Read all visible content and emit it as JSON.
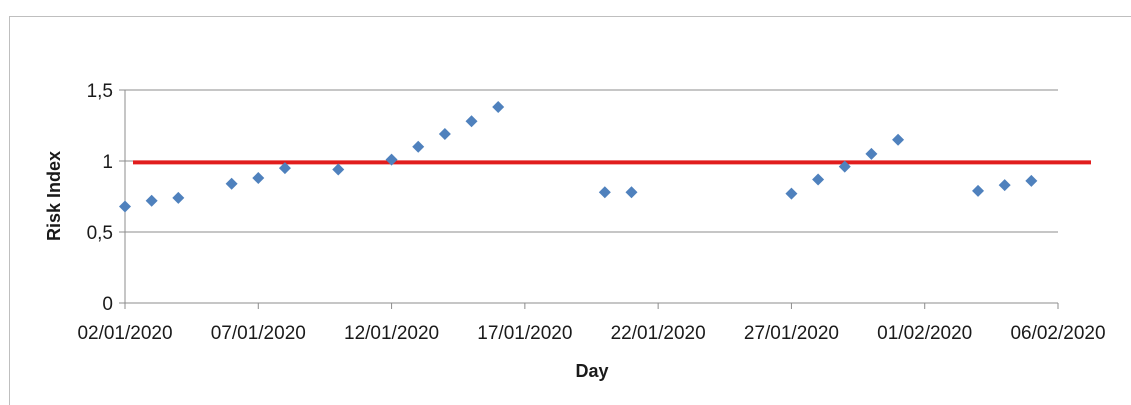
{
  "chart_data": {
    "type": "scatter",
    "xlabel": "Day",
    "ylabel": "Risk Index",
    "x_ticks": [
      "02/01/2020",
      "07/01/2020",
      "12/01/2020",
      "17/01/2020",
      "22/01/2020",
      "27/01/2020",
      "01/02/2020",
      "06/02/2020"
    ],
    "y_ticks": [
      "0",
      "0,5",
      "1",
      "1,5"
    ],
    "xlim": [
      "2020-01-02",
      "2020-02-06"
    ],
    "ylim": [
      0,
      1.5
    ],
    "grid": "horizontal",
    "legend": "none",
    "series": [
      {
        "color": "#4f81bd",
        "marker": "diamond",
        "points": [
          {
            "x": "2020-01-02",
            "y": 0.68
          },
          {
            "x": "2020-01-03",
            "y": 0.72
          },
          {
            "x": "2020-01-04",
            "y": 0.74
          },
          {
            "x": "2020-01-06",
            "y": 0.84
          },
          {
            "x": "2020-01-07",
            "y": 0.88
          },
          {
            "x": "2020-01-08",
            "y": 0.95
          },
          {
            "x": "2020-01-10",
            "y": 0.94
          },
          {
            "x": "2020-01-12",
            "y": 1.01
          },
          {
            "x": "2020-01-13",
            "y": 1.1
          },
          {
            "x": "2020-01-14",
            "y": 1.19
          },
          {
            "x": "2020-01-15",
            "y": 1.28
          },
          {
            "x": "2020-01-16",
            "y": 1.38
          },
          {
            "x": "2020-01-20",
            "y": 0.78
          },
          {
            "x": "2020-01-21",
            "y": 0.78
          },
          {
            "x": "2020-01-27",
            "y": 0.77
          },
          {
            "x": "2020-01-28",
            "y": 0.87
          },
          {
            "x": "2020-01-29",
            "y": 0.96
          },
          {
            "x": "2020-01-30",
            "y": 1.05
          },
          {
            "x": "2020-01-31",
            "y": 1.15
          },
          {
            "x": "2020-02-03",
            "y": 0.79
          },
          {
            "x": "2020-02-04",
            "y": 0.83
          },
          {
            "x": "2020-02-05",
            "y": 0.86
          }
        ]
      }
    ],
    "reference_line": {
      "y": 0.99,
      "color": "#e11d1d",
      "span": "full-width"
    }
  }
}
